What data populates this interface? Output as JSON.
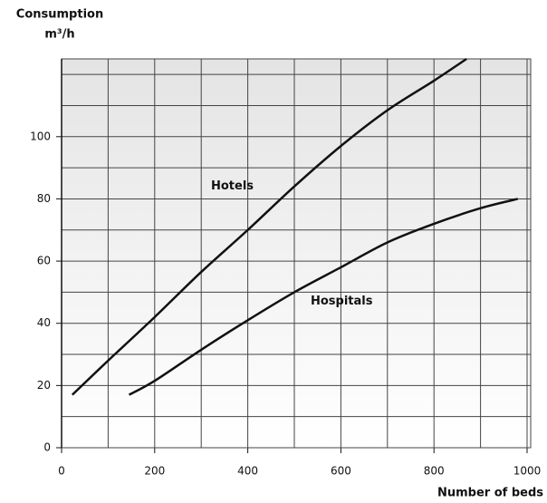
{
  "chart_data": {
    "type": "line",
    "ylabel": [
      "Consumption",
      "m³/h"
    ],
    "xlabel": "Number of beds",
    "xlim": [
      0,
      1000
    ],
    "xticks": [
      0,
      200,
      400,
      600,
      800,
      1000
    ],
    "x_minor_ticks": [
      100,
      300,
      500,
      700,
      900
    ],
    "ylim": [
      0,
      125
    ],
    "yticks": [
      0,
      20,
      40,
      60,
      80,
      100
    ],
    "y_minor_ticks": [
      10,
      30,
      50,
      70,
      90,
      110,
      120
    ],
    "grid": true,
    "series": [
      {
        "name": "Hotels",
        "color": "#111111",
        "x": [
          23,
          100,
          200,
          300,
          400,
          500,
          600,
          700,
          800,
          870
        ],
        "values": [
          17,
          28,
          42,
          56.5,
          70,
          84,
          97,
          108.5,
          118,
          125
        ]
      },
      {
        "name": "Hospitals",
        "color": "#111111",
        "x": [
          145,
          200,
          300,
          400,
          500,
          600,
          700,
          800,
          900,
          980
        ],
        "values": [
          17,
          21.5,
          31.5,
          41,
          50,
          58,
          66,
          72,
          77,
          80
        ]
      }
    ]
  }
}
